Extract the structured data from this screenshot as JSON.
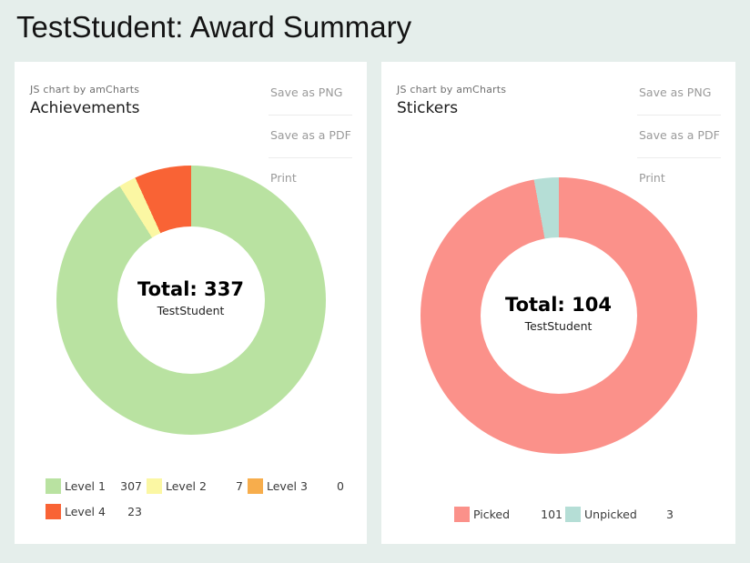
{
  "page": {
    "title": "TestStudent: Award Summary",
    "background": "#e5eeeb"
  },
  "export_menu": [
    "Save as PNG",
    "Save as a PDF",
    "Print"
  ],
  "chart_data": [
    {
      "type": "pie",
      "donut": true,
      "title": "Achievements",
      "credit": "JS chart by amCharts",
      "labels": [
        "Level 1",
        "Level 2",
        "Level 3",
        "Level 4"
      ],
      "values": [
        307,
        7,
        0,
        23
      ],
      "colors": [
        "#B9E2A1",
        "#FBF7A3",
        "#F7AD4C",
        "#F96335"
      ],
      "total": 337,
      "center_title": "Total: 337",
      "center_subtitle": "TestStudent",
      "legend_position": "bottom"
    },
    {
      "type": "pie",
      "donut": true,
      "title": "Stickers",
      "credit": "JS chart by amCharts",
      "labels": [
        "Picked",
        "Unpicked"
      ],
      "values": [
        101,
        3
      ],
      "colors": [
        "#FB918A",
        "#B5DED6"
      ],
      "total": 104,
      "center_title": "Total: 104",
      "center_subtitle": "TestStudent",
      "legend_position": "bottom"
    }
  ]
}
